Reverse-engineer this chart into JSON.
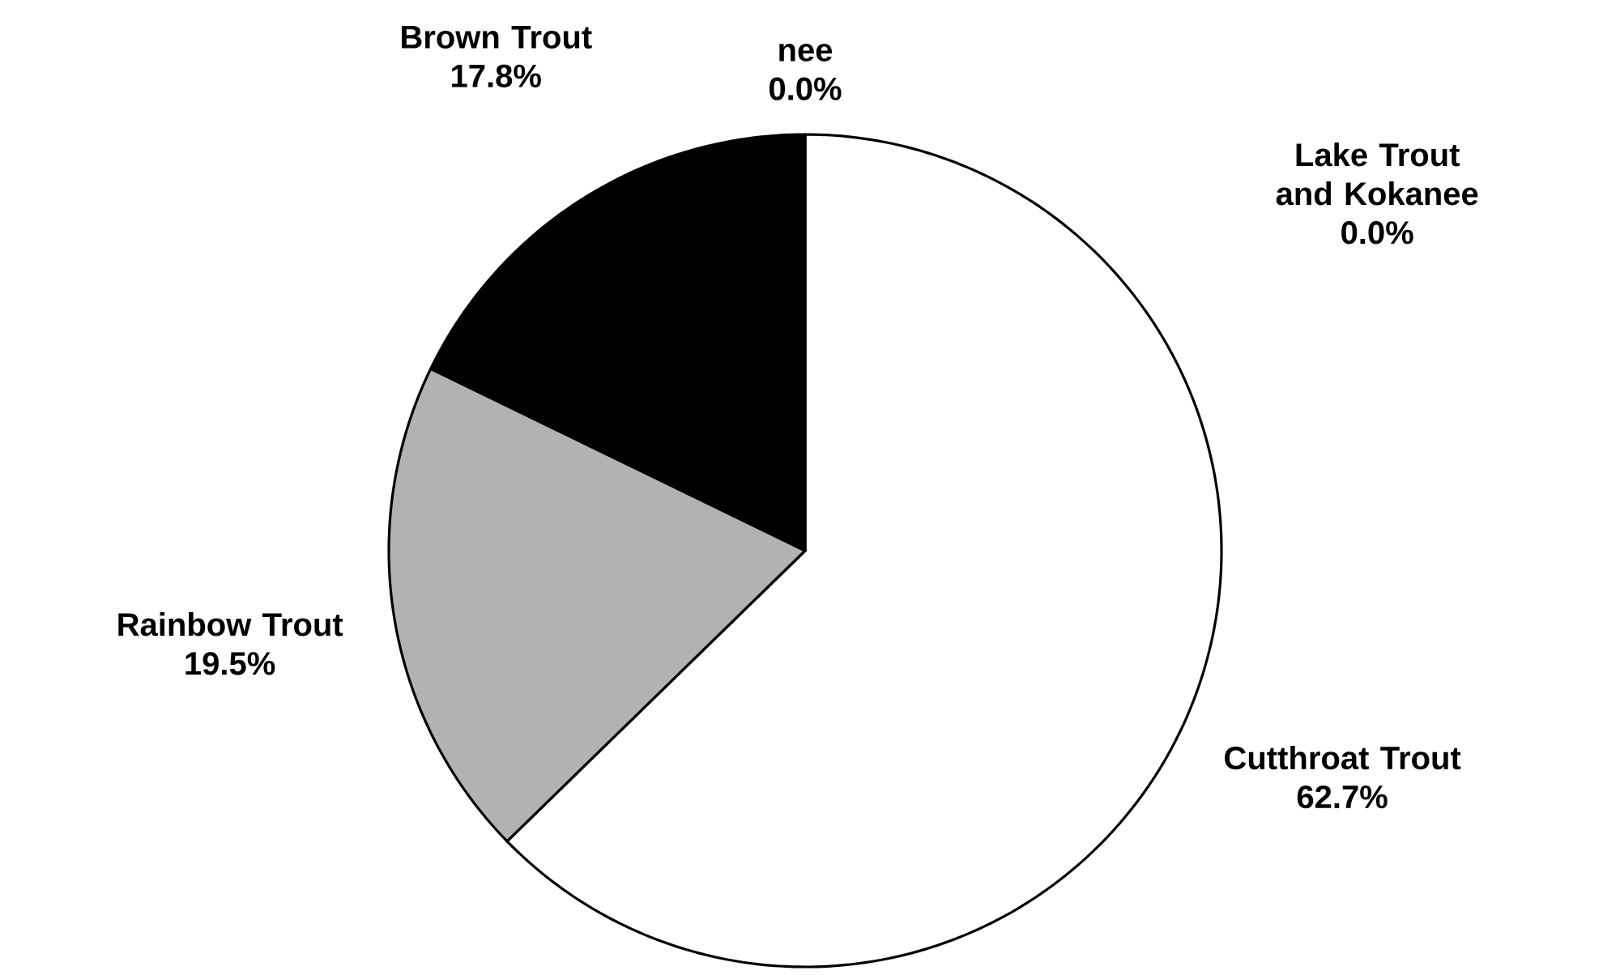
{
  "chart_data": {
    "type": "pie",
    "categories": [
      "Cutthroat Trout",
      "Rainbow Trout",
      "Brown Trout",
      "nee",
      "Lake Trout and Kokanee"
    ],
    "values": [
      62.7,
      19.5,
      17.8,
      0.0,
      0.0
    ],
    "colors": [
      "#ffffff",
      "#b2b2b2",
      "#000000",
      "#ffffff",
      "#ffffff"
    ],
    "value_labels": [
      "62.7%",
      "19.5%",
      "17.8%",
      "0.0%",
      "0.0%"
    ]
  }
}
